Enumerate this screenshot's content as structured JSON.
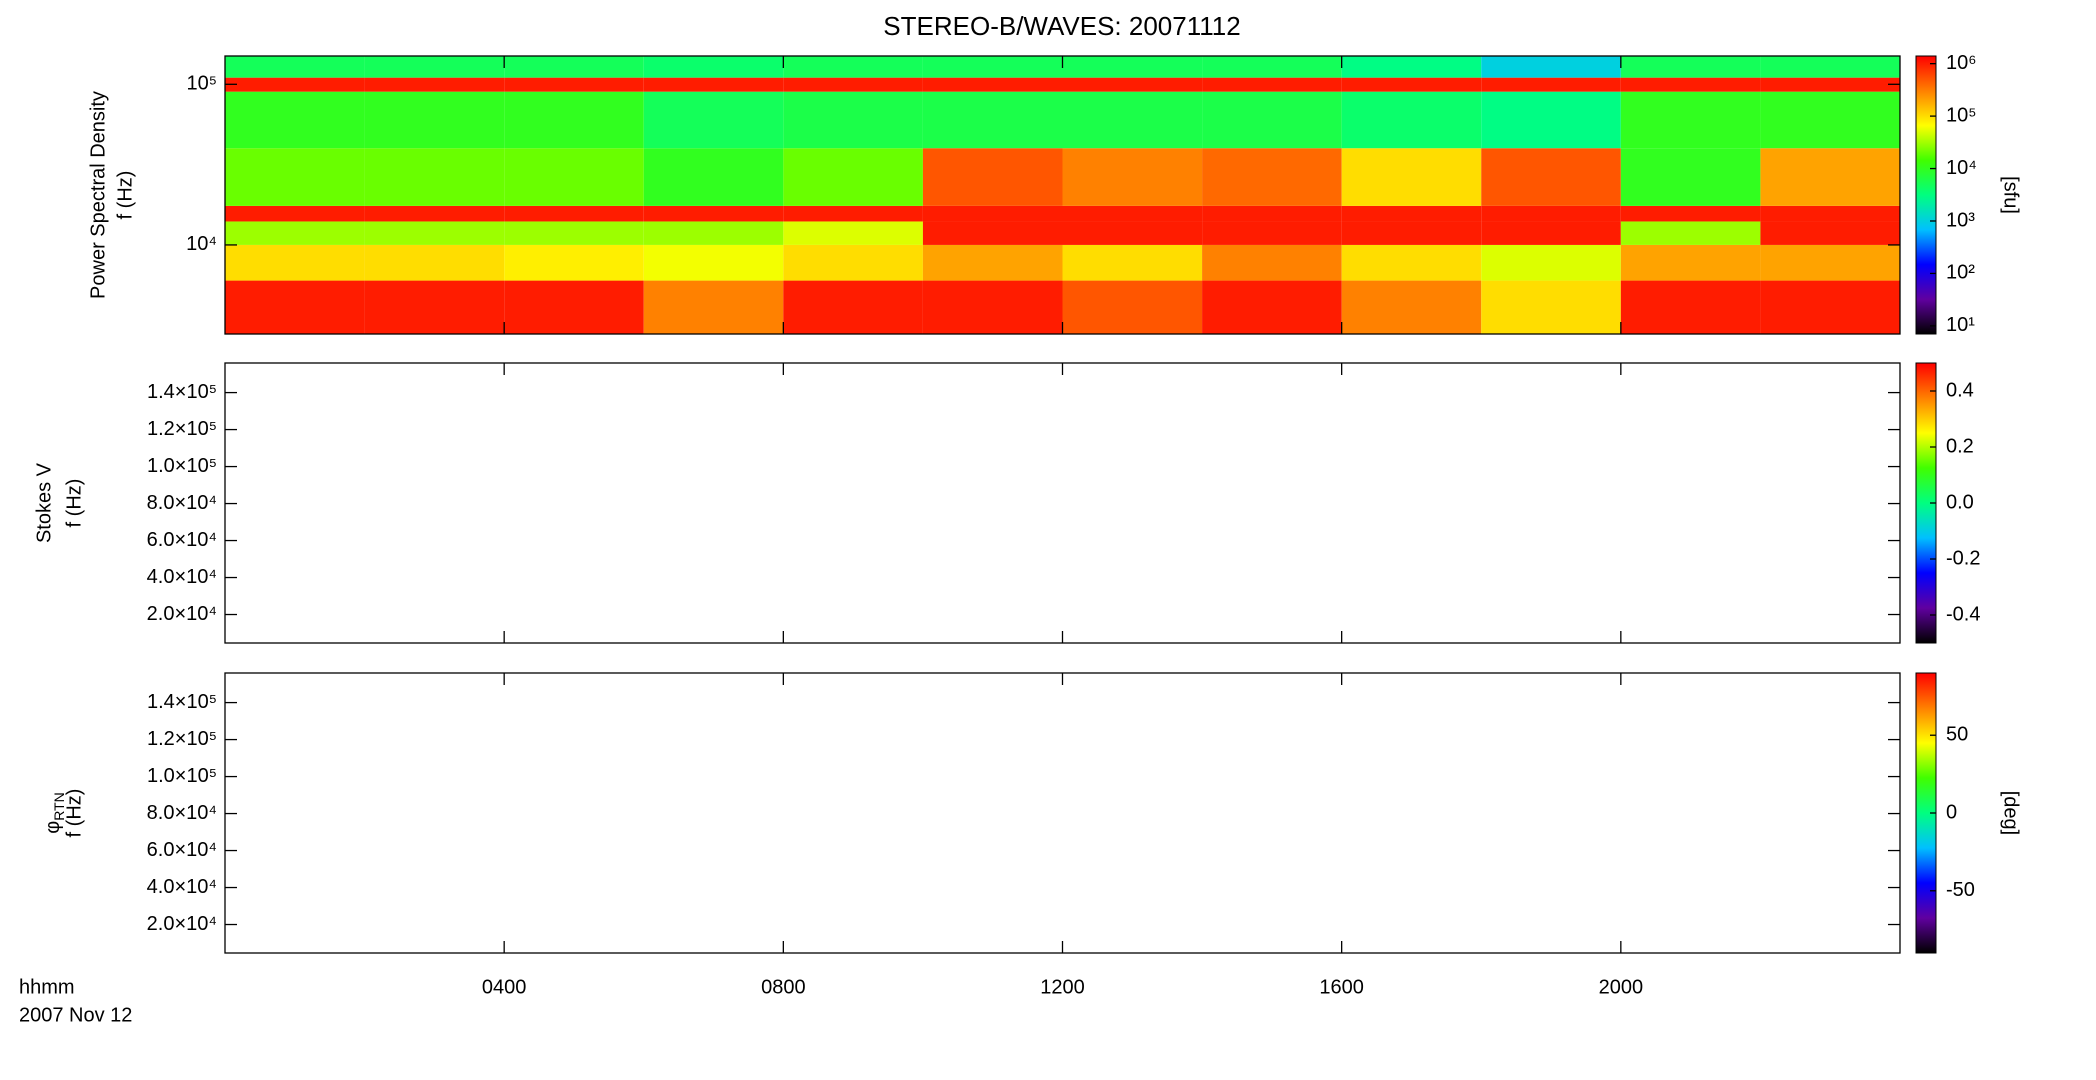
{
  "chart_data": [
    {
      "type": "heatmap",
      "title": "STEREO-B/WAVES: 20071112",
      "ylabel": [
        "Power Spectral Density",
        "f (Hz)"
      ],
      "xlim": [
        0,
        24
      ],
      "ylog": true,
      "ylim": [
        2790,
        150000
      ],
      "yticks": [
        {
          "value": 10000,
          "label": "10⁴"
        },
        {
          "value": 100000,
          "label": "10⁵"
        }
      ],
      "xbins": [
        0,
        2,
        4,
        6,
        8,
        10,
        12,
        14,
        16,
        18,
        20,
        22,
        24
      ],
      "ybins": [
        2790,
        6000,
        10000,
        14000,
        17500,
        40000,
        90000,
        110000,
        150000
      ],
      "values": [
        [
          1000000,
          1000000,
          1000000,
          300000,
          1000000,
          1000000,
          500000,
          1000000,
          300000,
          100000,
          1000000,
          1000000
        ],
        [
          100000,
          100000,
          80000,
          60000,
          100000,
          200000,
          100000,
          300000,
          100000,
          50000,
          200000,
          200000
        ],
        [
          30000,
          30000,
          30000,
          30000,
          50000,
          1000000,
          1000000,
          1000000,
          1000000,
          1000000,
          30000,
          1000000
        ],
        [
          1000000,
          1000000,
          1000000,
          1000000,
          1000000,
          1000000,
          1000000,
          1000000,
          1000000,
          1000000,
          1000000,
          1000000
        ],
        [
          20000,
          20000,
          20000,
          10000,
          20000,
          500000,
          300000,
          400000,
          100000,
          500000,
          10000,
          200000
        ],
        [
          10000,
          10000,
          10000,
          5000,
          6000,
          6000,
          6000,
          6000,
          4000,
          3000,
          10000,
          10000
        ],
        [
          1000000,
          1000000,
          1000000,
          1000000,
          1000000,
          1000000,
          1000000,
          1000000,
          1000000,
          1000000,
          1000000,
          1000000
        ],
        [
          5000,
          5000,
          5000,
          4000,
          5000,
          5000,
          5000,
          5000,
          3000,
          1000,
          5000,
          5000
        ]
      ],
      "zlog": true,
      "zlim": [
        7,
        1400000
      ],
      "zticks": [
        {
          "value": 10,
          "label": "10¹"
        },
        {
          "value": 100,
          "label": "10²"
        },
        {
          "value": 1000,
          "label": "10³"
        },
        {
          "value": 10000,
          "label": "10⁴"
        },
        {
          "value": 100000,
          "label": "10⁵"
        },
        {
          "value": 1000000,
          "label": "10⁶"
        }
      ],
      "zlabel": "[sfu]",
      "colormap": [
        "#000000",
        "#6000a0",
        "#0000ff",
        "#00c0ff",
        "#00ff80",
        "#40ff00",
        "#ffff00",
        "#ff8000",
        "#ff0000"
      ]
    },
    {
      "type": "heatmap",
      "ylabel": [
        "Stokes V",
        "f (Hz)"
      ],
      "xlim": [
        0,
        24
      ],
      "ylog": false,
      "ylim": [
        4600,
        156000
      ],
      "yticks": [
        {
          "value": 20000,
          "label": "2.0×10⁴"
        },
        {
          "value": 40000,
          "label": "4.0×10⁴"
        },
        {
          "value": 60000,
          "label": "6.0×10⁴"
        },
        {
          "value": 80000,
          "label": "8.0×10⁴"
        },
        {
          "value": 100000,
          "label": "1.0×10⁵"
        },
        {
          "value": 120000,
          "label": "1.2×10⁵"
        },
        {
          "value": 140000,
          "label": "1.4×10⁵"
        }
      ],
      "zlog": false,
      "zlim": [
        -0.5,
        0.5
      ],
      "zticks": [
        0.4,
        0.2,
        {
          "value": 0,
          "label": "0.0"
        },
        -0.2,
        -0.4
      ]
    },
    {
      "type": "heatmap",
      "ylabel_symbol": "φ",
      "ylabel_subscript": "RTN",
      "ylabel": [
        "f (Hz)"
      ],
      "xlim": [
        0,
        24
      ],
      "ylog": false,
      "ylim": [
        4600,
        156000
      ],
      "yticks": [
        {
          "value": 20000,
          "label": "2.0×10⁴"
        },
        {
          "value": 40000,
          "label": "4.0×10⁴"
        },
        {
          "value": 60000,
          "label": "6.0×10⁴"
        },
        {
          "value": 80000,
          "label": "8.0×10⁴"
        },
        {
          "value": 100000,
          "label": "1.0×10⁵"
        },
        {
          "value": 120000,
          "label": "1.2×10⁵"
        },
        {
          "value": 140000,
          "label": "1.4×10⁵"
        }
      ],
      "xticks": [
        {
          "value": 4,
          "label": "0400"
        },
        {
          "value": 8,
          "label": "0800"
        },
        {
          "value": 12,
          "label": "1200"
        },
        {
          "value": 16,
          "label": "1600"
        },
        {
          "value": 20,
          "label": "2000"
        }
      ],
      "xlabel": [
        "hhmm",
        "2007 Nov 12"
      ],
      "zlog": false,
      "zlim": [
        -90,
        90
      ],
      "zticks": [
        50,
        0,
        -50
      ],
      "zlabel": "[deg]"
    }
  ]
}
